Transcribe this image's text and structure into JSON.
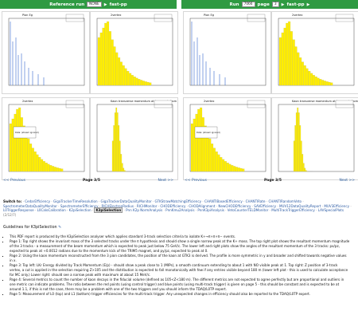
{
  "left_header": {
    "label": "Reference run",
    "select_value": "NONE",
    "stream": "fast-pp"
  },
  "right_header": {
    "run_label": "Run",
    "run_value": "7066",
    "page_label": "page",
    "page_value": "3",
    "stream": "fast-pp"
  },
  "plot_titles": {
    "left": [
      "Pion Eg",
      "2vertex",
      "2vertex",
      "Kaon transverse momentum at beam axis from the DB"
    ],
    "right": [
      "Pion Eg",
      "2vertex",
      "2vertex",
      "Kaon transverse momentum at beam axis from the DB"
    ]
  },
  "plot_texts": {
    "data_label": "Data: (stream ignored)",
    "axis_left_small": "Pion momentum [GeV]",
    "axis_right_small": "Momentum [GeV]"
  },
  "pager_left": {
    "prev": "<< Previous",
    "page": "Page 3/5",
    "next": "Next >>"
  },
  "pager_right": {
    "prev": "<< Previous",
    "page": "Page 3/5",
    "next": "Next >>"
  },
  "switch": {
    "label": "Switch to:",
    "links": [
      "CedarEfficiency",
      "GigaTrackerTimeResolution",
      "GigaTrackerDataQualityMonitor",
      "GTKStrawMatchingEfficiency",
      "CHANTIBasedEfficiency",
      "CHANTIRate",
      "CHANTIRandomVeto",
      "SpectrometerDataQualityMonitor",
      "SpectrometerEfficiency",
      "RICHElectronRadius",
      "RICHMonitor",
      "CHODEfficiency",
      "CHODAlignment",
      "NewCHODEfficiency",
      "SAVEfficiency",
      "MUV12DataQualityReport",
      "MUV3Efficiency",
      "L0TriggerResponse",
      "L0CaloCalibration",
      "K2piSelection",
      "K3piSelection",
      "Pnn K2p NormAnalysis",
      "PnnKmu2Analysis",
      "PnnK3piAnalysis",
      "VetoCounterTELDMonitor",
      "MultiTrackTriggerEfficiency",
      "LAVSpecialPlots"
    ],
    "active_index": 20,
    "trailing": "(2/12/7)"
  },
  "guidelines_title": "Guidelines for K3piSelection",
  "guidelines_items": [
    "This PDF report is produced by the K3piSelection analyser which applies standard 3-track selection criteria to isolate K+→π+π+π− events.",
    "Page 1: Top right shows the invariant mass of the 3 selected tracks under the π hypothesis and should show a single narrow peak at the K+ mass. The top right plot shows the resultant momentum magnitude of the 3 tracks - a measurement of the beam momentum which is expected to peak just below 75 GeV/c. The lower left and right plots show the angles of the resultant momentum of the 3 tracks: px/pz, expected to peak at +0.0012 radians due to the momentum kick of the TRIM5 magnet, and py/pz, expected to peak at 0.",
    "Page 2: Using the kaon momentum reconstructed from the 3 pion candidates, the position of the kaon at GTK3 is derived. The profile is more symmetric in y and broader and shifted towards negative values in x.",
    "Page 3: Top left: LKr Energy divided by Track Momentum (E/p) - should show a peak close to 1 (MIPs), a smooth continuum extending to about 1 with NO visible peak at 1. Top right: Z position of 3-track vertex, a cut is applied in the selection requiring Z>105 and the distribution is expected to fall monotonically with few if any entries visible beyond 180 m (lower left plot - this is used to calculate acceptance for MC only.) Lower right: should see a narrow peak with maximum at about 15 MeV/c.",
    "Page 4: Several metrics to count the number of kaon decays in the fiducial volume (defined as 105<Z<180 m). The different metrics are not expected to agree perfectly but are proportional and outliers in one metric can indicate problems. The ratio between the red points (using control trigger) and blue points (using multi-track trigger) is given on page 5 - this should be constant and is expected to be at around 1.1, if this is not the case, there may be a problem with one of the two triggers and you should inform the TDAQ/L0TP expert.",
    "Page 5: Measurement of L0 (top) and L1 (bottom) trigger efficiencies for the multi-track trigger. Any unexpected changes in efficiency should also be reported to the TDAQ/L0TP expert."
  ],
  "colors": {
    "header_green": "#2f9a42",
    "histogram_fill": "#ffee00",
    "link_blue": "#2b5aa3"
  }
}
